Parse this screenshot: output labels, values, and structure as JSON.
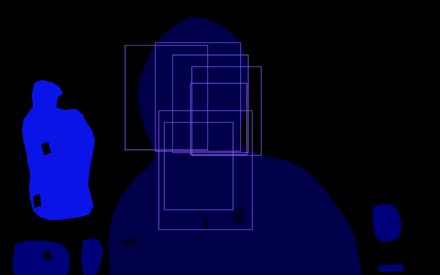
{
  "viewport": {
    "background_color": "#000000"
  },
  "segmentation": {
    "regions": [
      {
        "label": "person",
        "color": "#00004a"
      },
      {
        "label": "left-blob",
        "color": "#0a14e6"
      },
      {
        "label": "bottom-left-blob",
        "color": "#00007a"
      },
      {
        "label": "right-small-blob",
        "color": "#00007a"
      }
    ]
  },
  "detections": {
    "box_color": "#8a5cf0",
    "count_label": ""
  }
}
